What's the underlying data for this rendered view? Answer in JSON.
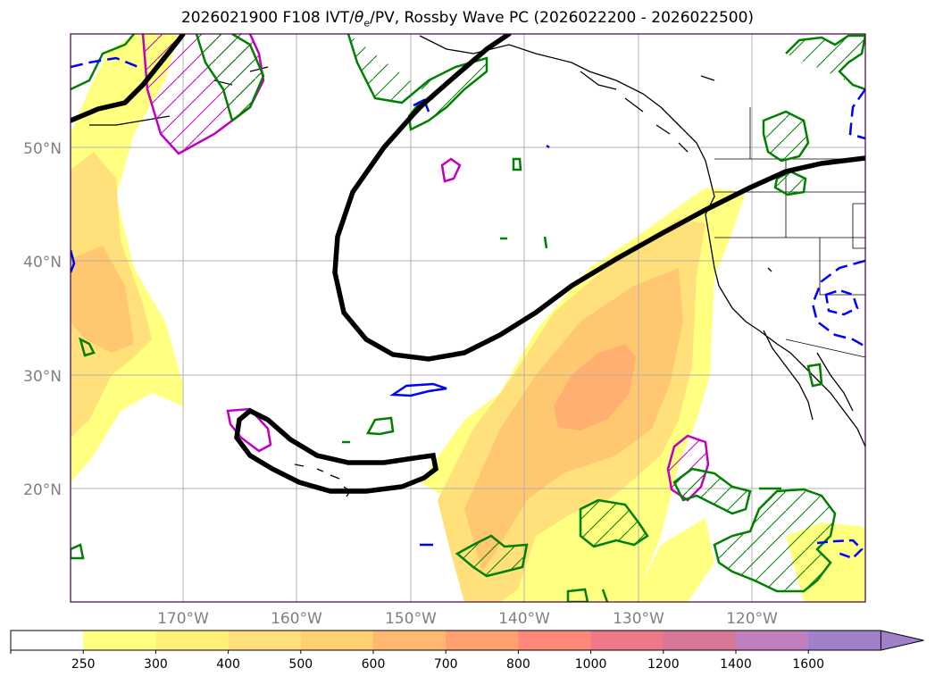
{
  "title": "2026021900 F108 IVT/θe/PV, Rossby Wave PC (2026022200 - 2026022500)",
  "title_parts": {
    "prefix": "2026021900 F108 IVT/",
    "theta": "θ",
    "theta_sub": "e",
    "suffix": "/PV, Rossby Wave PC (2026022200 - 2026022500)"
  },
  "lat_labels": [
    "50°N",
    "40°N",
    "30°N",
    "20°N"
  ],
  "lon_labels": [
    "170°W",
    "160°W",
    "150°W",
    "140°W",
    "130°W",
    "120°W"
  ],
  "colorbar": {
    "ticks": [
      "250",
      "300",
      "400",
      "500",
      "600",
      "700",
      "800",
      "1000",
      "1200",
      "1400",
      "1600"
    ],
    "colors": [
      "#ffffff",
      "#ffff80",
      "#fff07a",
      "#ffe07a",
      "#ffd070",
      "#ffb870",
      "#ffa070",
      "#ff8878",
      "#ee7888",
      "#d87898",
      "#c080c0",
      "#a080c8"
    ],
    "extend": "max"
  },
  "colors": {
    "ivt_shade_1": "#ffff80",
    "ivt_shade_2": "#ffe07a",
    "ivt_shade_3": "#ffc870",
    "ivt_shade_4": "#ffb070",
    "rossby_pc_contour": "#000000",
    "green_contour": "#008000",
    "magenta_contour": "#c000c0",
    "blue_contour": "#0000ff",
    "coastline": "#000000",
    "grid": "#b0b0b0"
  }
}
